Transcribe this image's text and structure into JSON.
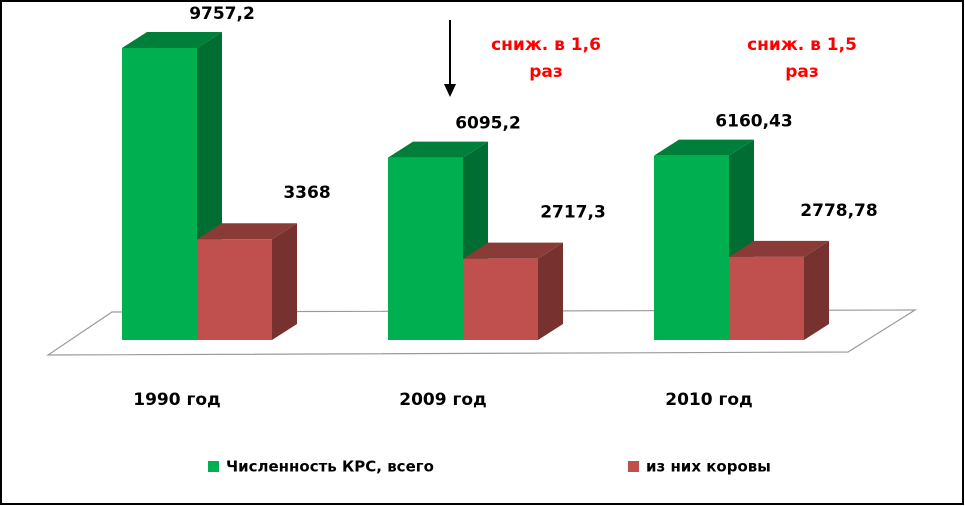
{
  "chart_data": {
    "type": "bar3d",
    "categories": [
      "1990 год",
      "2009 год",
      "2010 год"
    ],
    "series": [
      {
        "name": "Численность КРС, всего",
        "color": "#00b050",
        "values": [
          9757.2,
          6095.2,
          6160.43
        ],
        "value_labels": [
          "9757,2",
          "6095,2",
          "6160,43"
        ]
      },
      {
        "name": "из них коровы",
        "color": "#c0504d",
        "values": [
          3368,
          2717.3,
          2778.78
        ],
        "value_labels": [
          "3368",
          "2717,3",
          "2778,78"
        ]
      }
    ],
    "annotations": [
      {
        "lines": [
          "сниж. в 1,6",
          "раз"
        ],
        "color": "#ff0000"
      },
      {
        "lines": [
          "сниж. в 1,5",
          "раз"
        ],
        "color": "#ff0000"
      }
    ],
    "legend": "bottom"
  }
}
